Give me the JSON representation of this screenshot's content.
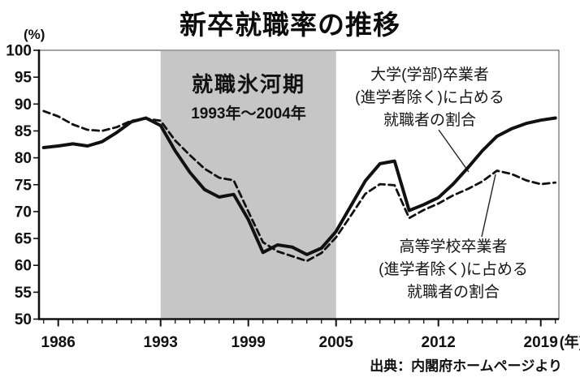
{
  "page": {
    "background": "#ffffff"
  },
  "chart_data": {
    "type": "line",
    "title": "新卒就職率の推移",
    "y_unit_label": "(%)",
    "x_suffix_label": "(年)",
    "ylim": [
      50,
      100
    ],
    "y_step": 5,
    "grid": false,
    "legend_position": "annotations-on-plot",
    "x": [
      1985,
      1986,
      1987,
      1988,
      1989,
      1990,
      1991,
      1992,
      1993,
      1994,
      1995,
      1996,
      1997,
      1998,
      1999,
      2000,
      2001,
      2002,
      2003,
      2004,
      2005,
      2006,
      2007,
      2008,
      2009,
      2010,
      2011,
      2012,
      2013,
      2014,
      2015,
      2016,
      2017,
      2018,
      2019,
      2020
    ],
    "x_labeled_ticks": [
      1986,
      1993,
      1999,
      2005,
      2012,
      2019
    ],
    "series": [
      {
        "name": "大学（学部）卒業者（進学者除く）に占める就職者の割合",
        "style": "solid",
        "values": [
          81.9,
          82.2,
          82.6,
          82.2,
          83.0,
          84.7,
          86.7,
          87.4,
          86.0,
          81.3,
          77.3,
          74.1,
          72.7,
          73.2,
          68.5,
          62.4,
          63.8,
          63.4,
          62.0,
          63.2,
          66.3,
          71.0,
          75.7,
          78.9,
          79.4,
          70.2,
          71.3,
          72.6,
          75.1,
          78.1,
          81.3,
          84.0,
          85.4,
          86.4,
          87.0,
          87.4
        ]
      },
      {
        "name": "高等学校卒業者（進学者除く）に占める就職者の割合",
        "style": "dashed",
        "values": [
          88.7,
          87.7,
          86.2,
          85.2,
          85.0,
          85.7,
          86.9,
          87.3,
          86.9,
          83.2,
          80.5,
          78.0,
          76.3,
          75.8,
          70.0,
          64.3,
          62.6,
          61.7,
          60.8,
          62.3,
          65.2,
          69.2,
          73.3,
          75.1,
          74.9,
          68.8,
          70.3,
          71.5,
          73.0,
          74.2,
          75.6,
          77.6,
          77.0,
          75.8,
          75.1,
          75.4
        ]
      }
    ],
    "shaded_region": {
      "from": 1993,
      "to": 2005,
      "label": "就職氷河期",
      "sublabel": "1993年〜2004年",
      "color": "#c6c6c6"
    },
    "annotations": {
      "university": {
        "lines": [
          "大学(学部)卒業者",
          "(進学者除く)に占める",
          "就職者の割合"
        ]
      },
      "highschool": {
        "lines": [
          "高等学校卒業者",
          "(進学者除く)に占める",
          "就職者の割合"
        ]
      }
    },
    "source": "出典：内閣府ホームページより",
    "colors": {
      "line": "#111111",
      "band": "#c6c6c6"
    }
  }
}
